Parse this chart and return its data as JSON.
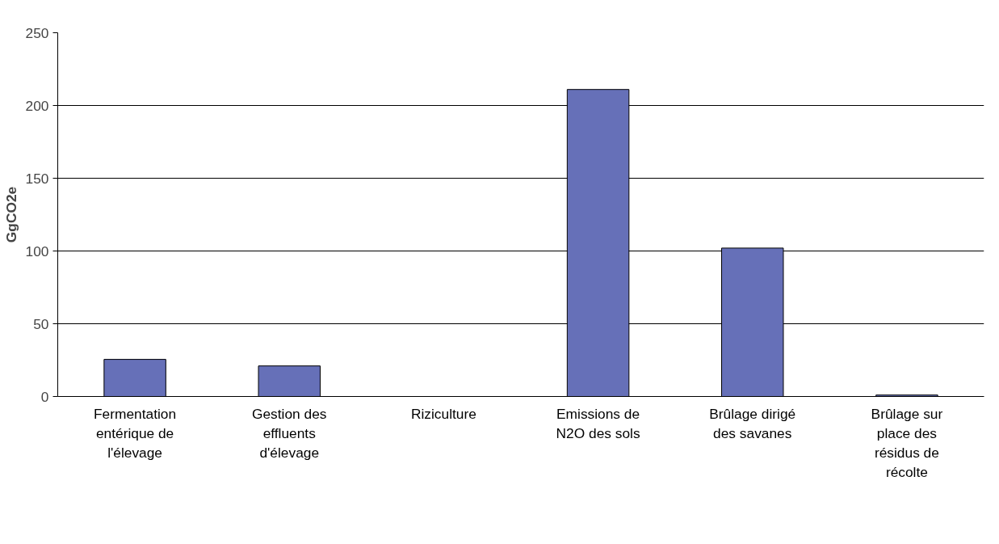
{
  "chart_data": {
    "type": "bar",
    "ylabel": "GgCO2e",
    "categories": [
      "Fermentation entérique de l'élevage",
      "Gestion des effluents d'élevage",
      "Riziculture",
      "Emissions de N2O des sols",
      "Brûlage dirigé des savanes",
      "Brûlage sur place des résidus de récolte"
    ],
    "values": [
      25.5,
      21,
      0,
      211,
      102,
      1
    ],
    "color": "#6670b8",
    "ylim": [
      0,
      250
    ],
    "yticks": [
      0,
      50,
      100,
      150,
      200,
      250
    ],
    "grid": "y"
  }
}
